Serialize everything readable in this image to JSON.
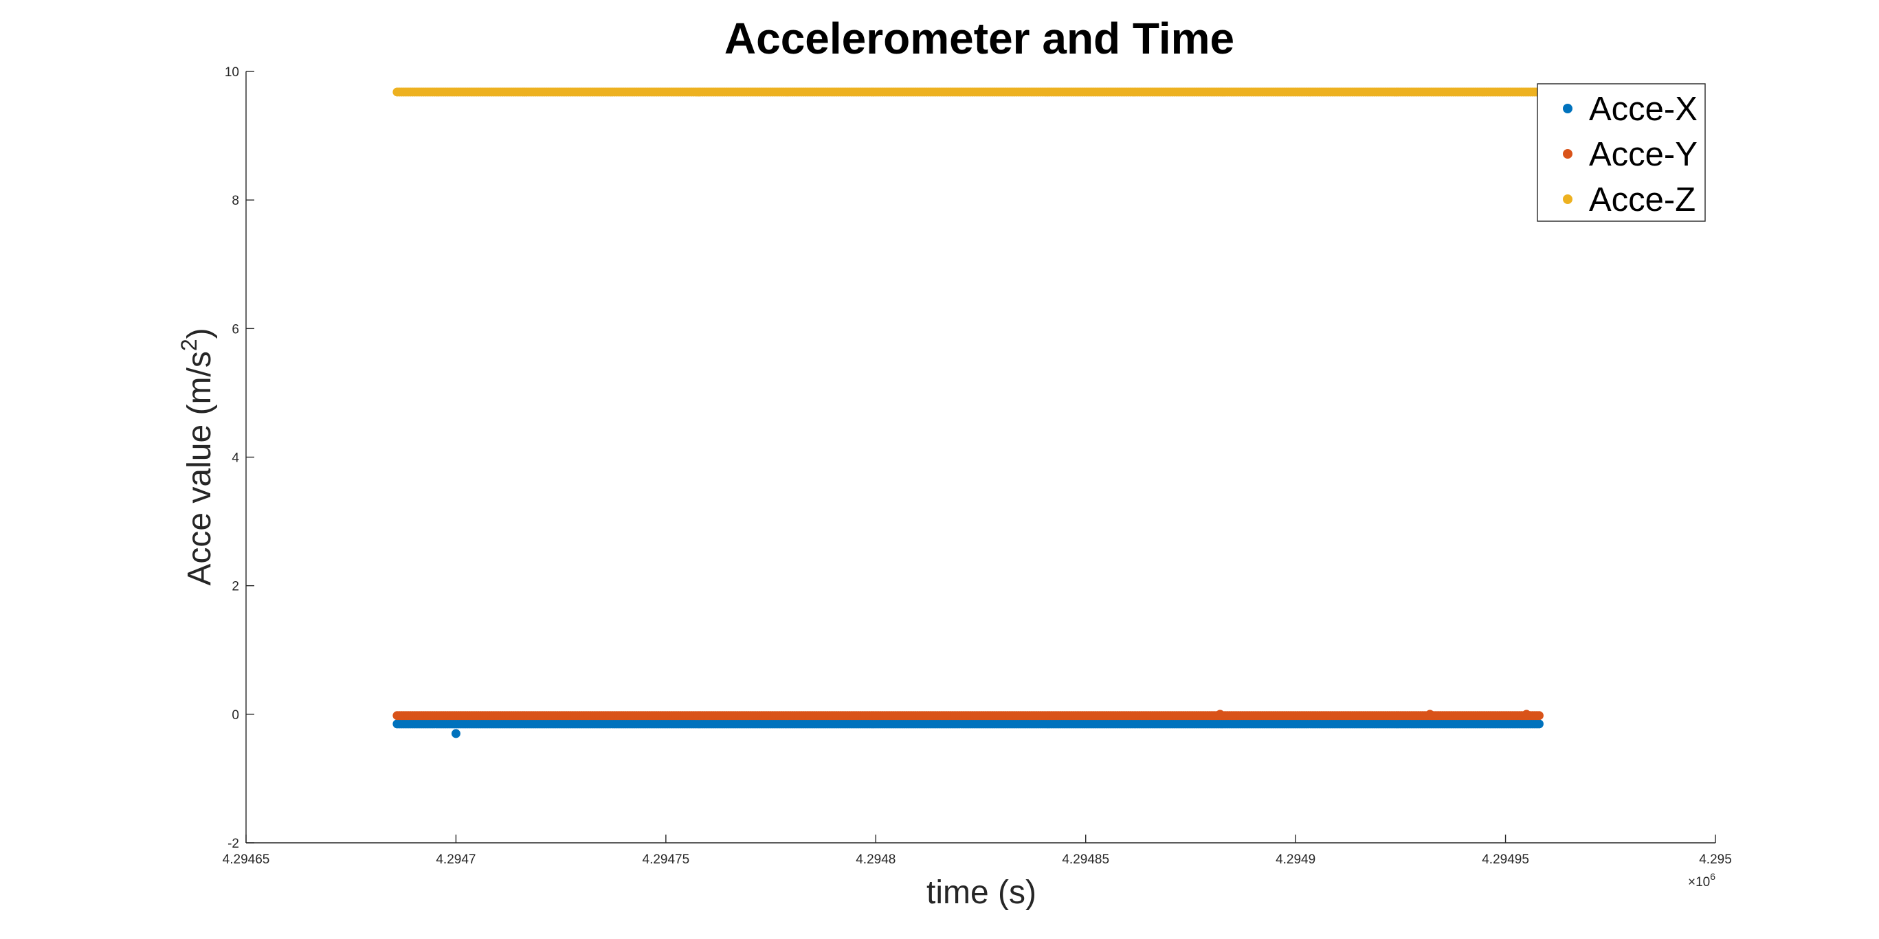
{
  "chart_data": {
    "type": "scatter",
    "title": "Accelerometer and Time",
    "xlabel": "time (s)",
    "ylabel_main": "Acce value (m/s",
    "ylabel_sup": "2",
    "ylabel_end": ")",
    "x_exponent_base": "×10",
    "x_exponent_power": "6",
    "xlim": [
      4.29465,
      4.295
    ],
    "ylim": [
      -2,
      10
    ],
    "x_ticks": [
      4.29465,
      4.2947,
      4.29475,
      4.2948,
      4.29485,
      4.2949,
      4.29495,
      4.295
    ],
    "x_tick_labels": [
      "4.29465",
      "4.2947",
      "4.29475",
      "4.2948",
      "4.29485",
      "4.2949",
      "4.29495",
      "4.295"
    ],
    "y_ticks": [
      -2,
      0,
      2,
      4,
      6,
      8,
      10
    ],
    "y_tick_labels": [
      "-2",
      "0",
      "2",
      "4",
      "6",
      "8",
      "10"
    ],
    "grid": false,
    "legend_position": "top-right",
    "x_range_data": [
      4.294686,
      4.294958
    ],
    "series": [
      {
        "name": "Acce-X",
        "color": "#0072BD",
        "baseline": -0.15,
        "outliers": [
          {
            "x": 4.2947,
            "y": -0.3
          }
        ]
      },
      {
        "name": "Acce-Y",
        "color": "#D95319",
        "baseline": -0.02,
        "outliers": [
          {
            "x": 4.294882,
            "y": 0.0
          },
          {
            "x": 4.294932,
            "y": 0.0
          },
          {
            "x": 4.294955,
            "y": 0.0
          }
        ]
      },
      {
        "name": "Acce-Z",
        "color": "#EDB120",
        "baseline": 9.68,
        "outliers": []
      }
    ]
  }
}
